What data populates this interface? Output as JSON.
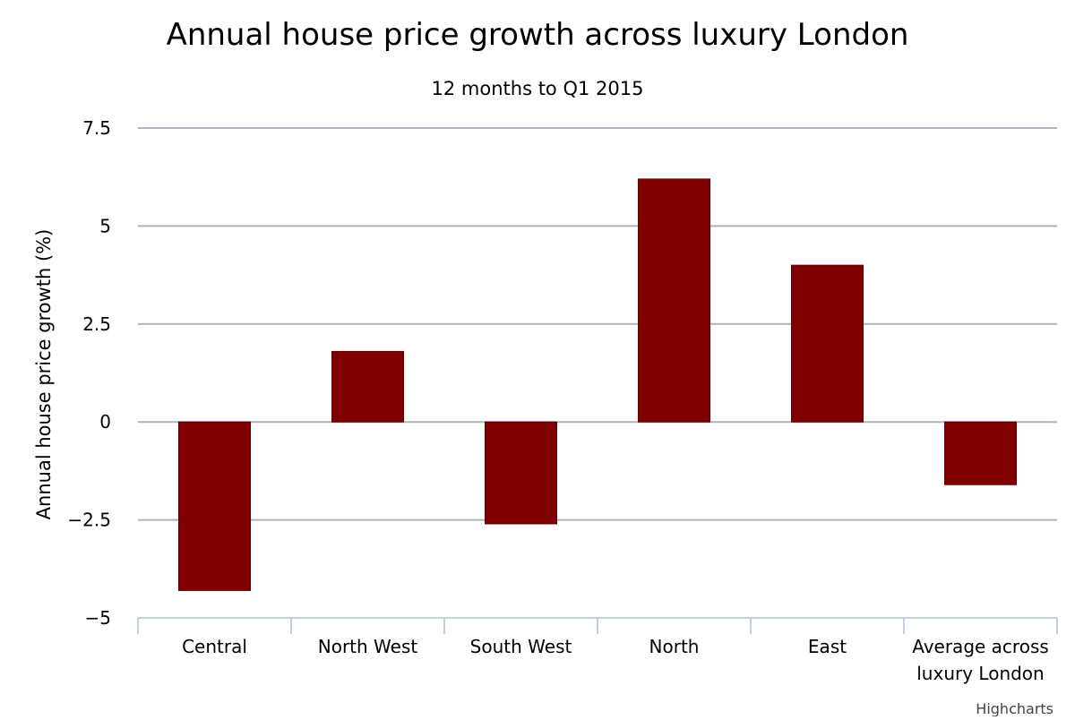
{
  "chart_data": {
    "type": "bar",
    "title": "Annual house price growth across luxury London",
    "subtitle": "12 months to Q1 2015",
    "ylabel": "Annual house price growth (%)",
    "xlabel": "",
    "categories": [
      "Central",
      "North West",
      "South West",
      "North",
      "East",
      "Average across luxury London"
    ],
    "values": [
      -4.3,
      1.8,
      -2.6,
      6.2,
      4.0,
      -1.6
    ],
    "ylim": [
      -5,
      7.5
    ],
    "yticks": [
      7.5,
      5,
      2.5,
      0,
      -2.5,
      -5
    ],
    "ytick_labels": [
      "7.5",
      "5",
      "2.5",
      "0",
      "−2.5",
      "−5"
    ],
    "bar_color": "#800000",
    "grid": true,
    "legend": "none"
  },
  "credits": "Highcharts"
}
